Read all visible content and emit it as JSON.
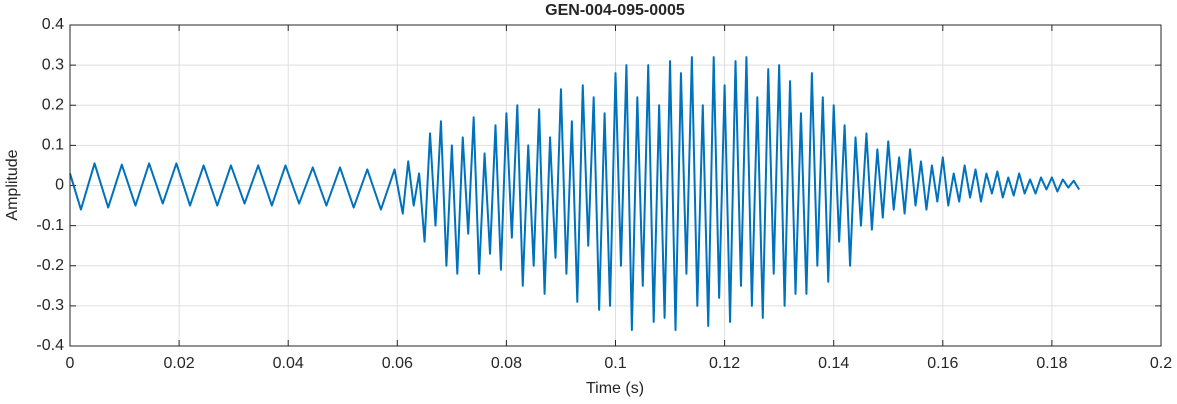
{
  "chart_data": {
    "type": "line",
    "title": "GEN-004-095-0005",
    "x_label": "Time (s)",
    "y_label": "Amplitude",
    "color": "#0072BD",
    "grid": true,
    "xlim": [
      0,
      0.2
    ],
    "xticks": [
      0,
      0.02,
      0.04,
      0.06,
      0.08,
      0.1,
      0.12,
      0.14,
      0.16,
      0.18,
      0.2
    ],
    "ylim": [
      -0.4,
      0.4
    ],
    "yticks": [
      -0.4,
      -0.3,
      -0.2,
      -0.1,
      0,
      0.1,
      0.2,
      0.3,
      0.4
    ],
    "x": [
      0,
      0.002,
      0.0045,
      0.007,
      0.0095,
      0.012,
      0.0145,
      0.017,
      0.0195,
      0.022,
      0.0245,
      0.027,
      0.0295,
      0.032,
      0.0345,
      0.037,
      0.0395,
      0.042,
      0.0445,
      0.047,
      0.0495,
      0.052,
      0.0545,
      0.057,
      0.0595,
      0.061,
      0.062,
      0.063,
      0.064,
      0.065,
      0.066,
      0.067,
      0.068,
      0.069,
      0.07,
      0.071,
      0.072,
      0.073,
      0.074,
      0.075,
      0.076,
      0.077,
      0.078,
      0.079,
      0.08,
      0.081,
      0.082,
      0.083,
      0.084,
      0.085,
      0.086,
      0.087,
      0.088,
      0.089,
      0.09,
      0.091,
      0.092,
      0.093,
      0.094,
      0.095,
      0.096,
      0.097,
      0.098,
      0.099,
      0.1,
      0.101,
      0.102,
      0.103,
      0.104,
      0.105,
      0.106,
      0.107,
      0.108,
      0.109,
      0.11,
      0.111,
      0.112,
      0.113,
      0.114,
      0.115,
      0.116,
      0.117,
      0.118,
      0.119,
      0.12,
      0.121,
      0.122,
      0.123,
      0.124,
      0.125,
      0.126,
      0.127,
      0.128,
      0.129,
      0.13,
      0.131,
      0.132,
      0.133,
      0.134,
      0.135,
      0.136,
      0.137,
      0.138,
      0.139,
      0.14,
      0.141,
      0.142,
      0.143,
      0.144,
      0.145,
      0.146,
      0.147,
      0.148,
      0.149,
      0.15,
      0.151,
      0.152,
      0.153,
      0.154,
      0.155,
      0.156,
      0.157,
      0.158,
      0.159,
      0.16,
      0.161,
      0.162,
      0.163,
      0.164,
      0.165,
      0.166,
      0.167,
      0.168,
      0.169,
      0.17,
      0.171,
      0.172,
      0.173,
      0.174,
      0.175,
      0.176,
      0.177,
      0.178,
      0.179,
      0.18,
      0.181,
      0.182,
      0.183,
      0.184,
      0.185
    ],
    "values": [
      0.03,
      -0.06,
      0.055,
      -0.055,
      0.052,
      -0.05,
      0.055,
      -0.045,
      0.055,
      -0.05,
      0.05,
      -0.05,
      0.05,
      -0.045,
      0.05,
      -0.05,
      0.05,
      -0.045,
      0.045,
      -0.05,
      0.045,
      -0.055,
      0.04,
      -0.06,
      0.04,
      -0.07,
      0.06,
      -0.05,
      0.03,
      -0.14,
      0.13,
      -0.1,
      0.16,
      -0.2,
      0.1,
      -0.22,
      0.12,
      -0.12,
      0.17,
      -0.22,
      0.08,
      -0.17,
      0.15,
      -0.21,
      0.18,
      -0.13,
      0.2,
      -0.25,
      0.1,
      -0.2,
      0.19,
      -0.27,
      0.12,
      -0.18,
      0.24,
      -0.22,
      0.16,
      -0.29,
      0.25,
      -0.15,
      0.22,
      -0.31,
      0.18,
      -0.3,
      0.28,
      -0.2,
      0.3,
      -0.36,
      0.22,
      -0.25,
      0.3,
      -0.34,
      0.2,
      -0.33,
      0.31,
      -0.36,
      0.28,
      -0.22,
      0.32,
      -0.3,
      0.2,
      -0.35,
      0.32,
      -0.28,
      0.25,
      -0.34,
      0.31,
      -0.25,
      0.32,
      -0.3,
      0.22,
      -0.33,
      0.29,
      -0.22,
      0.3,
      -0.3,
      0.26,
      -0.27,
      0.18,
      -0.27,
      0.28,
      -0.2,
      0.22,
      -0.24,
      0.2,
      -0.14,
      0.15,
      -0.2,
      0.12,
      -0.1,
      0.13,
      -0.11,
      0.09,
      -0.08,
      0.11,
      -0.06,
      0.07,
      -0.07,
      0.09,
      -0.05,
      0.06,
      -0.06,
      0.05,
      -0.04,
      0.07,
      -0.05,
      0.03,
      -0.04,
      0.05,
      -0.03,
      0.04,
      -0.04,
      0.03,
      -0.02,
      0.035,
      -0.03,
      0.02,
      -0.025,
      0.03,
      -0.02,
      0.015,
      -0.02,
      0.02,
      -0.01,
      0.02,
      -0.015,
      0.015,
      -0.005,
      0.012,
      -0.01
    ]
  }
}
